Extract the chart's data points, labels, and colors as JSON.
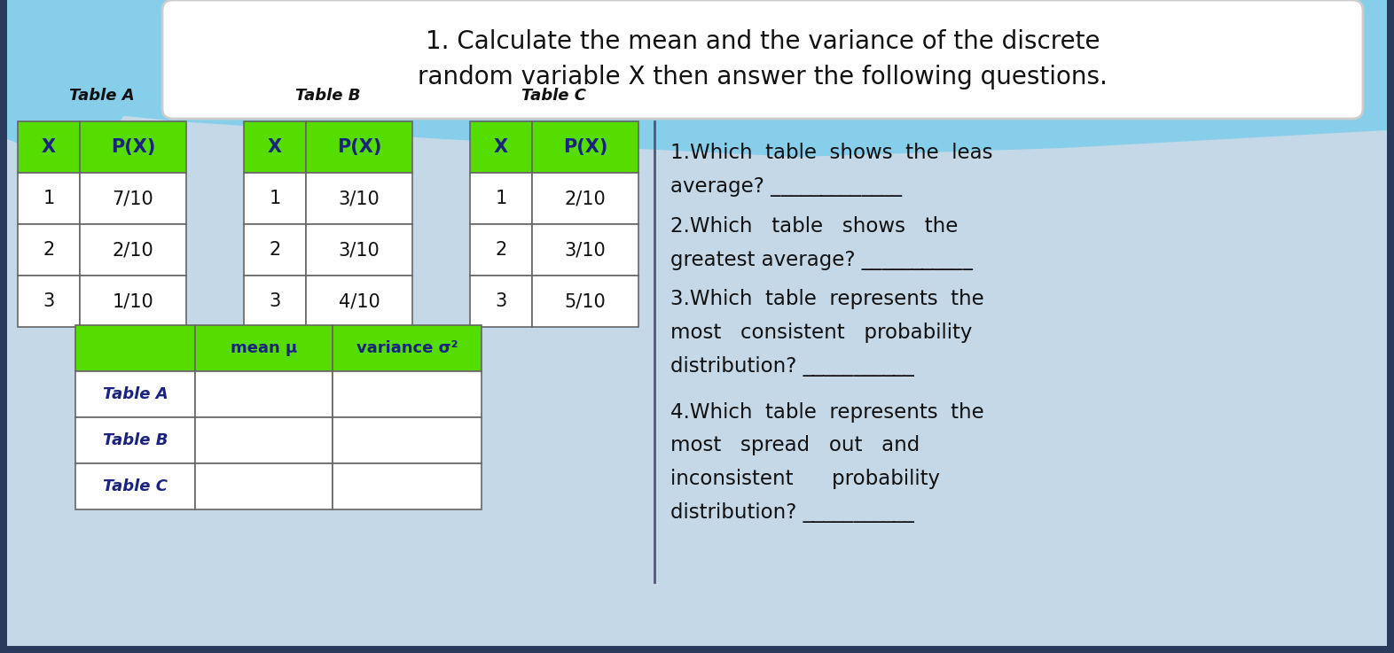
{
  "title_line1": "1. Calculate the mean and the variance of the discrete",
  "title_line2": "random variable X then answer the following questions.",
  "green_header": "#55DD00",
  "dark_blue_text": "#1a237e",
  "black_text": "#111111",
  "table_a_label": "Table A",
  "table_b_label": "Table B",
  "table_c_label": "Table C",
  "table_a_data": [
    [
      "X",
      "P(X)"
    ],
    [
      "1",
      "7/10"
    ],
    [
      "2",
      "2/10"
    ],
    [
      "3",
      "1/10"
    ]
  ],
  "table_b_data": [
    [
      "X",
      "P(X)"
    ],
    [
      "1",
      "3/10"
    ],
    [
      "2",
      "3/10"
    ],
    [
      "3",
      "4/10"
    ]
  ],
  "table_c_data": [
    [
      "X",
      "P(X)"
    ],
    [
      "1",
      "2/10"
    ],
    [
      "2",
      "3/10"
    ],
    [
      "3",
      "5/10"
    ]
  ],
  "summary_header": [
    "",
    "mean μ",
    "variance σ²"
  ],
  "summary_rows": [
    "Table A",
    "Table B",
    "Table C"
  ],
  "q1_line1": "1.Which  table  shows  the  leas",
  "q1_line2": "average? _____________",
  "q2_line1": "2.Which   table   shows   the",
  "q2_line2": "greatest average? ___________",
  "q3_line1": "3.Which  table  represents  the",
  "q3_line2": "most   consistent   probability",
  "q3_line3": "distribution? ___________",
  "q4_line1": "4.Which  table  represents  the",
  "q4_line2": "most   spread   out   and",
  "q4_line3": "inconsistent      probability",
  "q4_line4": "distribution? ___________",
  "bg_dark": "#2a3a5c",
  "bg_main": "#b8cfe0",
  "bg_light_blue": "#87CEEB",
  "white": "#FFFFFF",
  "cell_border": "#666666"
}
